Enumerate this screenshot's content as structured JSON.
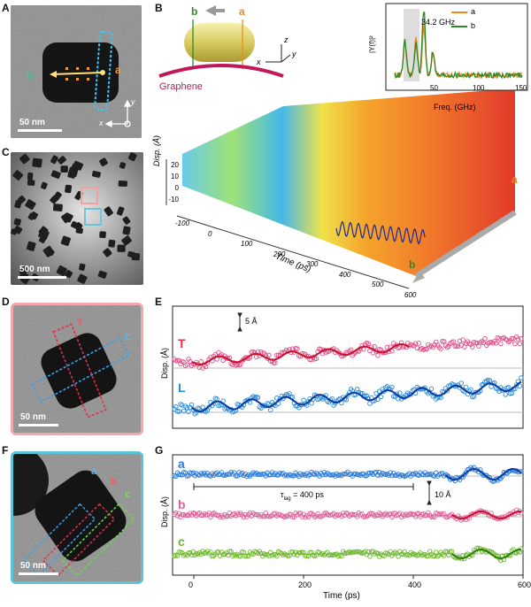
{
  "panels": {
    "A": {
      "letter": "A",
      "scale": "50 nm",
      "label_a": "a",
      "label_b": "b",
      "axis_x": "x",
      "axis_y": "y"
    },
    "B": {
      "letter": "B",
      "label_b": "b",
      "label_a": "a",
      "graphene": "Graphene",
      "axis_z": "z",
      "axis_x": "x",
      "axis_y": "y",
      "ylabel": "Disp. (Å)",
      "xlabel": "Time (ps)",
      "yticks": [
        "20",
        "10",
        "0",
        "-10"
      ],
      "xticks": [
        "-100",
        "0",
        "100",
        "200",
        "300",
        "400",
        "500",
        "600"
      ],
      "edge_a": "a",
      "edge_b": "b"
    },
    "C": {
      "letter": "C",
      "scale": "500 nm"
    },
    "D": {
      "letter": "D",
      "scale": "50 nm",
      "label_T": "T",
      "label_L": "L"
    },
    "E": {
      "letter": "E",
      "ylabel": "Disp. (Å)",
      "scale_text": "5 Å",
      "trace_T": "T",
      "trace_L": "L"
    },
    "F": {
      "letter": "F",
      "scale": "50 nm",
      "label_a": "a",
      "label_b": "b",
      "label_c": "c"
    },
    "G": {
      "letter": "G",
      "ylabel": "Disp. (Å)",
      "xlabel": "Time (ps)",
      "tau": "τ",
      "tau_sub": "lag",
      "tau_value": " = 400 ps",
      "scale_text": "10 Å",
      "trace_a": "a",
      "trace_b": "b",
      "trace_c": "c",
      "xticks": [
        "0",
        "200",
        "400",
        "600"
      ]
    }
  },
  "chart_data": [
    {
      "type": "line",
      "id": "inset-spectrum",
      "ylabel": "|Y(f)|²",
      "xlabel": "Freq. (GHz)",
      "xlim": [
        0,
        150
      ],
      "x_ticks": [
        50,
        100,
        150
      ],
      "annotation": "34.2 GHz",
      "series": [
        {
          "name": "a",
          "color": "#f08a1a",
          "peaks": [
            [
              12,
              0.45
            ],
            [
              25,
              0.55
            ],
            [
              34.2,
              0.7
            ],
            [
              45,
              0.3
            ]
          ]
        },
        {
          "name": "b",
          "color": "#2a8a2a",
          "peaks": [
            [
              12,
              0.5
            ],
            [
              25,
              0.45
            ],
            [
              34.2,
              1.0
            ],
            [
              45,
              0.35
            ]
          ]
        }
      ]
    },
    {
      "type": "scatter",
      "id": "panel-E",
      "ylabel": "Disp. (Å)",
      "series": [
        {
          "name": "T",
          "color": "#e0508a",
          "fit_color": "#c8102e",
          "osc_start_ps": 0,
          "osc_end_ps": 380
        },
        {
          "name": "L",
          "color": "#2a8ad8",
          "fit_color": "#0b3a9e",
          "osc_start_ps": 0,
          "osc_end_ps": 600
        }
      ]
    },
    {
      "type": "scatter",
      "id": "panel-G",
      "xlabel": "Time (ps)",
      "ylabel": "Disp. (Å)",
      "xlim": [
        0,
        600
      ],
      "x_ticks": [
        0,
        200,
        400,
        600
      ],
      "lag_ps": 400,
      "series": [
        {
          "name": "a",
          "color": "#2a7ad8",
          "fit_color": "#0b3a9e"
        },
        {
          "name": "b",
          "color": "#e0609a",
          "fit_color": "#c8102e"
        },
        {
          "name": "c",
          "color": "#6cb82a",
          "fit_color": "#2f7d10"
        }
      ]
    }
  ]
}
